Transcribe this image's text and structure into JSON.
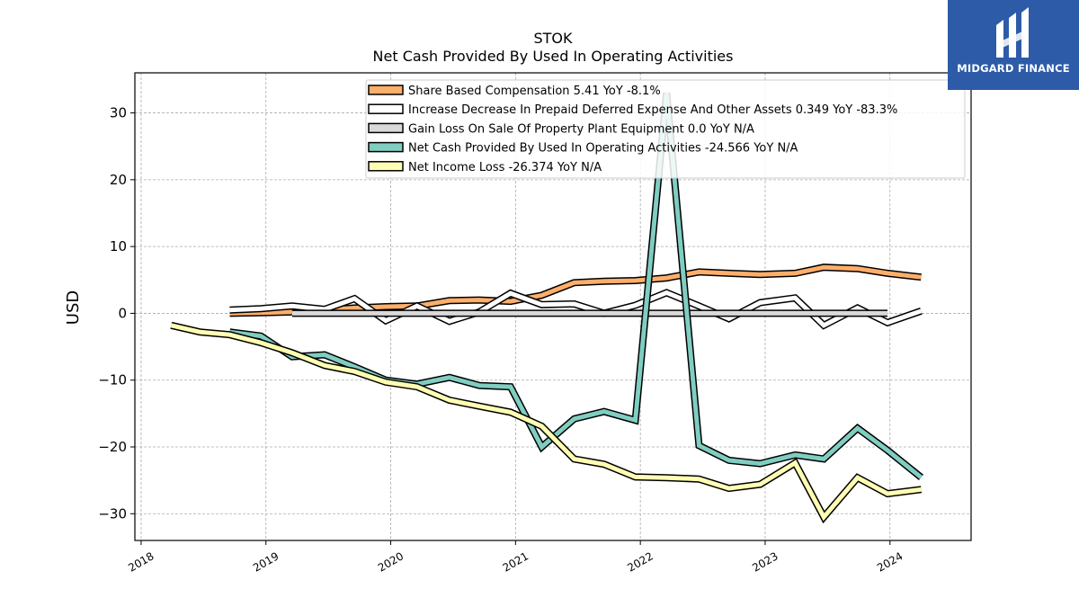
{
  "chart_data": {
    "type": "line",
    "title": "STOK",
    "subtitle": "Net Cash Provided By Used In Operating Activities",
    "xlabel": "",
    "ylabel": "USD",
    "xlim": [
      2017.95,
      2024.65
    ],
    "ylim": [
      -34,
      36
    ],
    "x_ticks": [
      "2018",
      "2019",
      "2020",
      "2021",
      "2022",
      "2023",
      "2024"
    ],
    "y_ticks": [
      30,
      20,
      10,
      0,
      -10,
      -20,
      -30
    ],
    "y_tick_labels": [
      "30",
      "20",
      "10",
      "0",
      "−10",
      "−20",
      "−30"
    ],
    "grid": true,
    "legend_position": "top-right",
    "series": [
      {
        "name": "Share Based Compensation",
        "legend_label": "Share Based Compensation  5.41 YoY -8.1%",
        "color": "#fdae6b",
        "x": [
          2018.71,
          2018.96,
          2019.21,
          2019.47,
          2019.71,
          2019.96,
          2020.21,
          2020.47,
          2020.71,
          2020.96,
          2021.21,
          2021.47,
          2021.71,
          2021.96,
          2022.21,
          2022.47,
          2022.71,
          2022.96,
          2023.24,
          2023.47,
          2023.74,
          2023.98,
          2024.25
        ],
        "y": [
          0.0,
          0.1,
          0.2,
          0.5,
          0.8,
          1.0,
          1.1,
          1.9,
          2.0,
          1.8,
          2.7,
          4.6,
          4.8,
          4.9,
          5.3,
          6.2,
          6.0,
          5.8,
          6.0,
          6.9,
          6.7,
          6.0,
          5.41
        ]
      },
      {
        "name": "Increase Decrease In Prepaid Deferred Expense And Other Assets",
        "legend_label": "Increase Decrease In Prepaid Deferred Expense And Other Assets  0.349 YoY -83.3%",
        "color": "#ffffff",
        "x": [
          2018.71,
          2018.96,
          2019.21,
          2019.47,
          2019.71,
          2019.96,
          2020.21,
          2020.47,
          2020.71,
          2020.96,
          2021.21,
          2021.47,
          2021.71,
          2021.96,
          2022.21,
          2022.47,
          2022.71,
          2022.96,
          2023.24,
          2023.47,
          2023.74,
          2023.98,
          2024.25
        ],
        "y": [
          0.5,
          0.7,
          1.1,
          0.6,
          2.2,
          -1.1,
          1.1,
          -1.2,
          0.2,
          3.0,
          1.3,
          1.4,
          0.0,
          1.2,
          3.1,
          1.1,
          -0.8,
          1.6,
          2.3,
          -1.8,
          0.8,
          -1.4,
          0.349
        ]
      },
      {
        "name": "Gain Loss On Sale Of Property Plant Equipment",
        "legend_label": "Gain Loss On Sale Of Property Plant Equipment  0.0 YoY N/A",
        "color": "#d9d9d9",
        "x": [
          2019.21,
          2023.98
        ],
        "y": [
          0.0,
          0.0
        ]
      },
      {
        "name": "Net Cash Provided By Used In Operating Activities",
        "legend_label": "Net Cash Provided By Used In Operating Activities  -24.566 YoY N/A",
        "color": "#80cdc1",
        "x": [
          2018.71,
          2018.96,
          2019.21,
          2019.47,
          2019.71,
          2019.96,
          2020.21,
          2020.47,
          2020.71,
          2020.96,
          2021.21,
          2021.47,
          2021.71,
          2021.96,
          2022.21,
          2022.47,
          2022.71,
          2022.96,
          2023.24,
          2023.47,
          2023.74,
          2023.98,
          2024.25
        ],
        "y": [
          -2.8,
          -3.4,
          -6.5,
          -6.2,
          -8.0,
          -10.0,
          -10.6,
          -9.6,
          -10.8,
          -11.0,
          -20.0,
          -15.8,
          -14.7,
          -16.0,
          33.0,
          -19.8,
          -22.0,
          -22.5,
          -21.2,
          -21.8,
          -17.2,
          -20.5,
          -24.566
        ]
      },
      {
        "name": "Net Income Loss",
        "legend_label": "Net Income Loss  -26.374 YoY N/A",
        "color": "#ffffb3",
        "x": [
          2018.24,
          2018.47,
          2018.71,
          2018.96,
          2019.21,
          2019.47,
          2019.71,
          2019.96,
          2020.21,
          2020.47,
          2020.71,
          2020.96,
          2021.21,
          2021.47,
          2021.71,
          2021.96,
          2022.21,
          2022.47,
          2022.71,
          2022.96,
          2023.24,
          2023.47,
          2023.74,
          2023.98,
          2024.25
        ],
        "y": [
          -1.8,
          -2.8,
          -3.2,
          -4.4,
          -5.9,
          -7.8,
          -8.7,
          -10.3,
          -11.0,
          -13.0,
          -13.9,
          -14.8,
          -16.9,
          -21.8,
          -22.6,
          -24.5,
          -24.6,
          -24.8,
          -26.2,
          -25.6,
          -22.4,
          -30.5,
          -24.6,
          -27.0,
          -26.374
        ]
      }
    ]
  },
  "brand": {
    "name": "MIDGARD FINANCE",
    "logo_icon": "midgard-logo-icon",
    "background": "#2d5ba8"
  }
}
